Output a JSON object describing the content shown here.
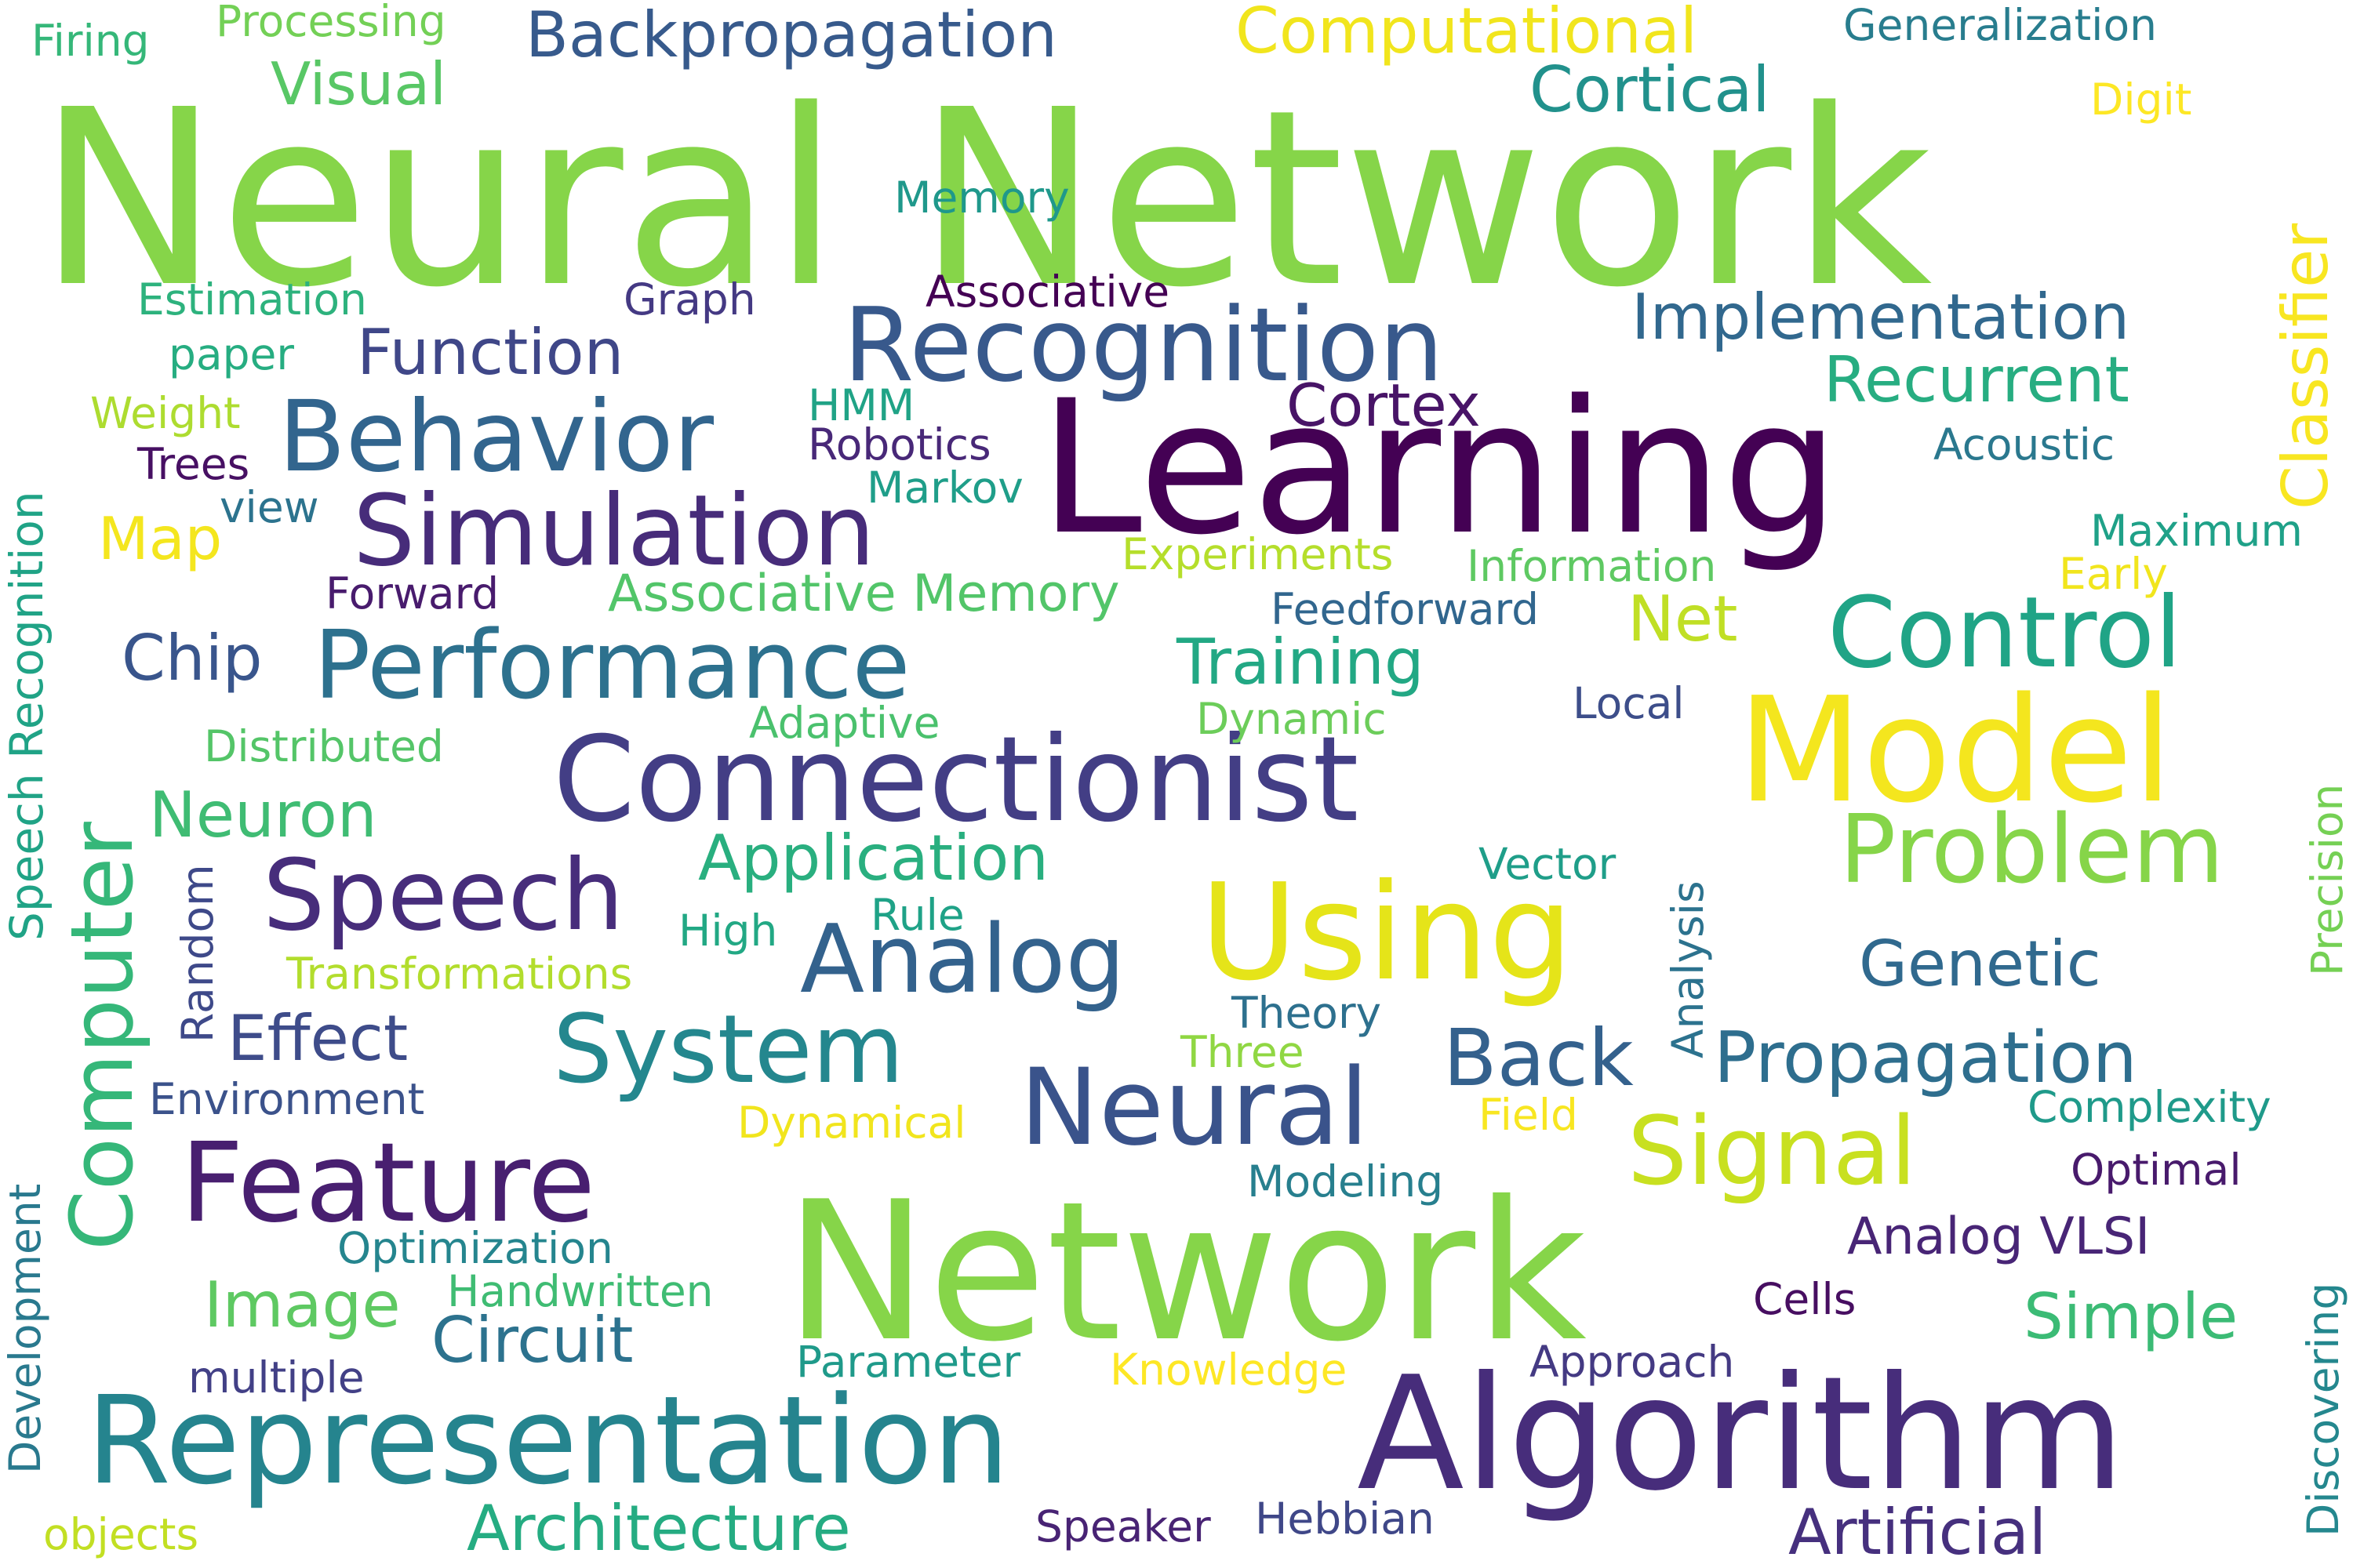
{
  "words": [
    {
      "text": "Neural Network",
      "color": "#86d549"
    },
    {
      "text": "Network",
      "color": "#86d549"
    },
    {
      "text": "Learning",
      "color": "#440154"
    },
    {
      "text": "Algorithm",
      "color": "#472d7b"
    },
    {
      "text": "Model",
      "color": "#f4e61e"
    },
    {
      "text": "Representation",
      "color": "#25848e"
    },
    {
      "text": "Connectionist",
      "color": "#433e85"
    },
    {
      "text": "Using",
      "color": "#e5e419"
    },
    {
      "text": "Recognition",
      "color": "#38598c"
    },
    {
      "text": "Neural",
      "color": "#3a538b"
    },
    {
      "text": "Feature",
      "color": "#481f70"
    },
    {
      "text": "Performance",
      "color": "#2d718e"
    },
    {
      "text": "Simulation",
      "color": "#472c7a"
    },
    {
      "text": "Behavior",
      "color": "#32658e"
    },
    {
      "text": "Speech",
      "color": "#472d7b"
    },
    {
      "text": "System",
      "color": "#24878e"
    },
    {
      "text": "Control",
      "color": "#20a486"
    },
    {
      "text": "Analog",
      "color": "#33628d"
    },
    {
      "text": "Problem",
      "color": "#86d549"
    },
    {
      "text": "Signal",
      "color": "#c8e020"
    },
    {
      "text": "Computer",
      "color": "#35b779"
    },
    {
      "text": "Computational",
      "color": "#f1e51d"
    },
    {
      "text": "Backpropagation",
      "color": "#375a8c"
    },
    {
      "text": "Propagation",
      "color": "#2e6e8e"
    },
    {
      "text": "Back",
      "color": "#34618d"
    },
    {
      "text": "Cortical",
      "color": "#21918c"
    },
    {
      "text": "Implementation",
      "color": "#31688e"
    },
    {
      "text": "Recurrent",
      "color": "#27ad81"
    },
    {
      "text": "Artificial",
      "color": "#46307e"
    },
    {
      "text": "Architecture",
      "color": "#25ac82"
    },
    {
      "text": "Application",
      "color": "#29af7f"
    },
    {
      "text": "Training",
      "color": "#22a884"
    },
    {
      "text": "Function",
      "color": "#3f4788"
    },
    {
      "text": "Genetic",
      "color": "#30698e"
    },
    {
      "text": "Effect",
      "color": "#3e4c8a"
    },
    {
      "text": "Circuit",
      "color": "#2c728e"
    },
    {
      "text": "Image",
      "color": "#5ec962"
    },
    {
      "text": "Simple",
      "color": "#3bbb75"
    },
    {
      "text": "Neuron",
      "color": "#3fbc73"
    },
    {
      "text": "Cortex",
      "color": "#481467"
    },
    {
      "text": "Visual",
      "color": "#58c765"
    },
    {
      "text": "Classifier",
      "color": "#f8e621"
    },
    {
      "text": "Net",
      "color": "#c0df25"
    },
    {
      "text": "Chip",
      "color": "#39558c"
    },
    {
      "text": "Map",
      "color": "#f4e61e"
    },
    {
      "text": "Associative Memory",
      "color": "#52c569"
    },
    {
      "text": "Speech Recognition",
      "color": "#20a386"
    },
    {
      "text": "Analog VLSI",
      "color": "#482576"
    },
    {
      "text": "Generalization",
      "color": "#287d8e"
    },
    {
      "text": "Complexity",
      "color": "#1f9a8a"
    },
    {
      "text": "Environment",
      "color": "#3b528b"
    },
    {
      "text": "Modeling",
      "color": "#277f8e"
    },
    {
      "text": "Optimization",
      "color": "#25858e"
    },
    {
      "text": "Approach",
      "color": "#443a83"
    },
    {
      "text": "Feedforward",
      "color": "#31668e"
    },
    {
      "text": "Maximum",
      "color": "#1fa188"
    },
    {
      "text": "Acoustic",
      "color": "#2a788e"
    },
    {
      "text": "Firing",
      "color": "#35b779"
    },
    {
      "text": "Processing",
      "color": "#73d056"
    },
    {
      "text": "Memory",
      "color": "#1f988b"
    },
    {
      "text": "Digit",
      "color": "#fde725"
    },
    {
      "text": "Estimation",
      "color": "#2db27d"
    },
    {
      "text": "Associative",
      "color": "#440154"
    },
    {
      "text": "Graph",
      "color": "#443983"
    },
    {
      "text": "paper",
      "color": "#26ad81"
    },
    {
      "text": "Weight",
      "color": "#addc30"
    },
    {
      "text": "Trees",
      "color": "#471063"
    },
    {
      "text": "view",
      "color": "#2c738e"
    },
    {
      "text": "HMM",
      "color": "#20a386"
    },
    {
      "text": "Robotics",
      "color": "#482878"
    },
    {
      "text": "Markov",
      "color": "#1f9e89"
    },
    {
      "text": "Forward",
      "color": "#481b6d"
    },
    {
      "text": "Experiments",
      "color": "#b5de2b"
    },
    {
      "text": "Information",
      "color": "#5ec962"
    },
    {
      "text": "Early",
      "color": "#f1e51d"
    },
    {
      "text": "Local",
      "color": "#3d4e8a"
    },
    {
      "text": "Dynamic",
      "color": "#6ccd5a"
    },
    {
      "text": "Adaptive",
      "color": "#4ac16d"
    },
    {
      "text": "Distributed",
      "color": "#54c568"
    },
    {
      "text": "Vector",
      "color": "#1f9e89"
    },
    {
      "text": "Analysis",
      "color": "#2c728e"
    },
    {
      "text": "Precision",
      "color": "#75d054"
    },
    {
      "text": "Random",
      "color": "#3e4989"
    },
    {
      "text": "High",
      "color": "#22a884"
    },
    {
      "text": "Rule",
      "color": "#1fa287"
    },
    {
      "text": "Transformations",
      "color": "#b2dd2d"
    },
    {
      "text": "Theory",
      "color": "#2d708e"
    },
    {
      "text": "Three",
      "color": "#90d743"
    },
    {
      "text": "Dynamical",
      "color": "#f1e51d"
    },
    {
      "text": "Field",
      "color": "#f8e621"
    },
    {
      "text": "Optimal",
      "color": "#481a6c"
    },
    {
      "text": "Handwritten",
      "color": "#3fbc73"
    },
    {
      "text": "Cells",
      "color": "#470e61"
    },
    {
      "text": "Development",
      "color": "#29798e"
    },
    {
      "text": "Discovering",
      "color": "#24878e"
    },
    {
      "text": "multiple",
      "color": "#424086"
    },
    {
      "text": "Parameter",
      "color": "#1f9a8a"
    },
    {
      "text": "Knowledge",
      "color": "#fde725"
    },
    {
      "text": "Speaker",
      "color": "#482374"
    },
    {
      "text": "Hebbian",
      "color": "#3f4788"
    },
    {
      "text": "objects",
      "color": "#c2df23"
    }
  ]
}
